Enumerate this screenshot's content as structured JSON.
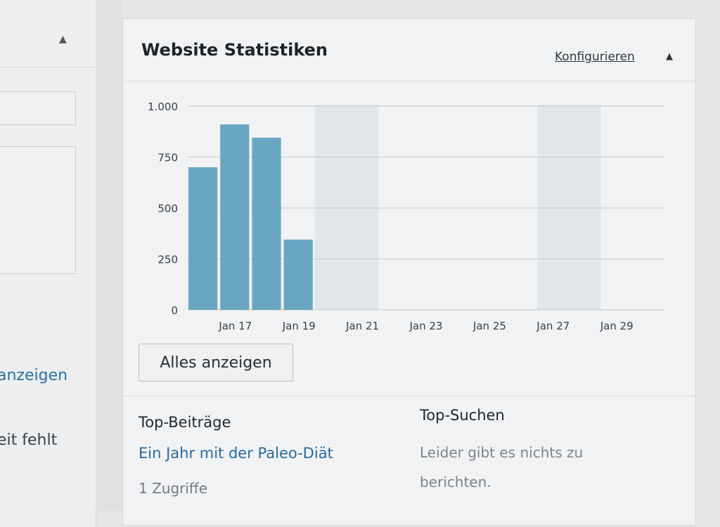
{
  "left_panel": {
    "toggle_icon": "triangle-up",
    "link_fragment": "anzeigen",
    "text_fragment": "eit fehlt"
  },
  "widget": {
    "title": "Website Statistiken",
    "configure_label": "Konfigurieren",
    "collapse_icon": "triangle-up",
    "view_all_label": "Alles anzeigen",
    "top_posts": {
      "heading": "Top-Beiträge",
      "items": [
        {
          "title": "Ein Jahr mit der Paleo-Diät",
          "views": "1 Zugriffe"
        }
      ]
    },
    "top_searches": {
      "heading": "Top-Suchen",
      "empty_message": "Leider gibt es nichts zu berichten."
    }
  },
  "colors": {
    "bar": "#6aa6c2",
    "weekend_band": "#e3e6e8",
    "link": "#2a6aa0"
  },
  "chart_data": {
    "type": "bar",
    "days": [
      "Jan 16",
      "Jan 17",
      "Jan 18",
      "Jan 19",
      "Jan 20",
      "Jan 21",
      "Jan 22",
      "Jan 23",
      "Jan 24",
      "Jan 25",
      "Jan 26",
      "Jan 27",
      "Jan 28",
      "Jan 29",
      "Jan 30"
    ],
    "values": [
      700,
      910,
      845,
      345,
      0,
      0,
      0,
      0,
      0,
      0,
      0,
      0,
      0,
      0,
      0
    ],
    "x_tick_labels": [
      "Jan 17",
      "Jan 19",
      "Jan 21",
      "Jan 23",
      "Jan 25",
      "Jan 27",
      "Jan 29"
    ],
    "y_tick_labels": [
      "0",
      "250",
      "500",
      "750",
      "1.000"
    ],
    "y_ticks": [
      0,
      250,
      500,
      750,
      1000
    ],
    "ylim": [
      0,
      1000
    ],
    "weekend_band_days": [
      [
        "Jan 20",
        "Jan 21"
      ],
      [
        "Jan 27",
        "Jan 28"
      ]
    ],
    "grid": "horizontal",
    "title": "",
    "xlabel": "",
    "ylabel": ""
  }
}
